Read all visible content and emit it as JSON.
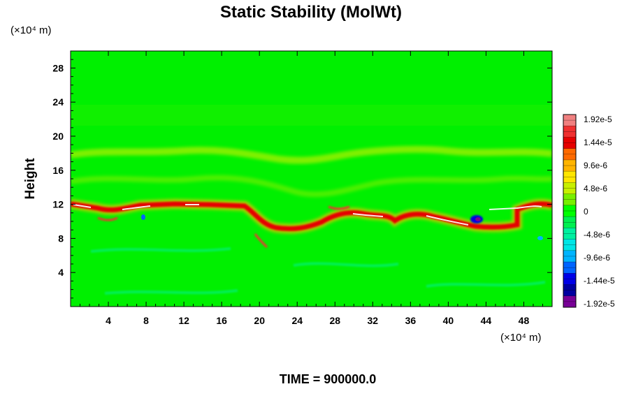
{
  "chart_data": {
    "type": "heatmap",
    "title": "Static Stability (MolWt)",
    "ylabel": "Height",
    "y_unit_label": "(×10⁴ m)",
    "x_unit_label": "(×10⁴ m)",
    "xlabel": "",
    "xlim": [
      0,
      51
    ],
    "ylim": [
      0,
      30
    ],
    "x_ticks": [
      4,
      8,
      12,
      16,
      20,
      24,
      28,
      32,
      36,
      40,
      44,
      48
    ],
    "y_ticks": [
      4,
      8,
      12,
      16,
      20,
      24,
      28
    ],
    "colorbar": {
      "labels": [
        "1.92e-5",
        "1.44e-5",
        "9.6e-6",
        "4.8e-6",
        "0",
        "-4.8e-6",
        "-9.6e-6",
        "-1.44e-5",
        "-1.92e-5"
      ],
      "range": [
        -1.92e-05,
        1.92e-05
      ],
      "colors": [
        "#f08080",
        "#f03030",
        "#e60000",
        "#ff6a00",
        "#ffb400",
        "#ffe600",
        "#c8f000",
        "#78f000",
        "#00ff00",
        "#00f050",
        "#00f0a0",
        "#00e6e6",
        "#00b4ff",
        "#0064ff",
        "#0000e6",
        "#0000a0",
        "#780096"
      ]
    },
    "background_value": 0,
    "features": [
      {
        "name": "stable-layer-band",
        "x_range": [
          0,
          51
        ],
        "y_range": [
          8.5,
          12.5
        ],
        "peak_value": 1.92e-05
      },
      {
        "name": "upper-weak-band",
        "x_range": [
          0,
          51
        ],
        "y_range": [
          16.5,
          18.5
        ],
        "peak_value": 4.8e-06
      },
      {
        "name": "negative-patch",
        "x_range": [
          42,
          45
        ],
        "y_range": [
          9.5,
          11
        ],
        "peak_value": -1.92e-05
      }
    ]
  },
  "footer": {
    "time_label": "TIME = 900000.0"
  }
}
